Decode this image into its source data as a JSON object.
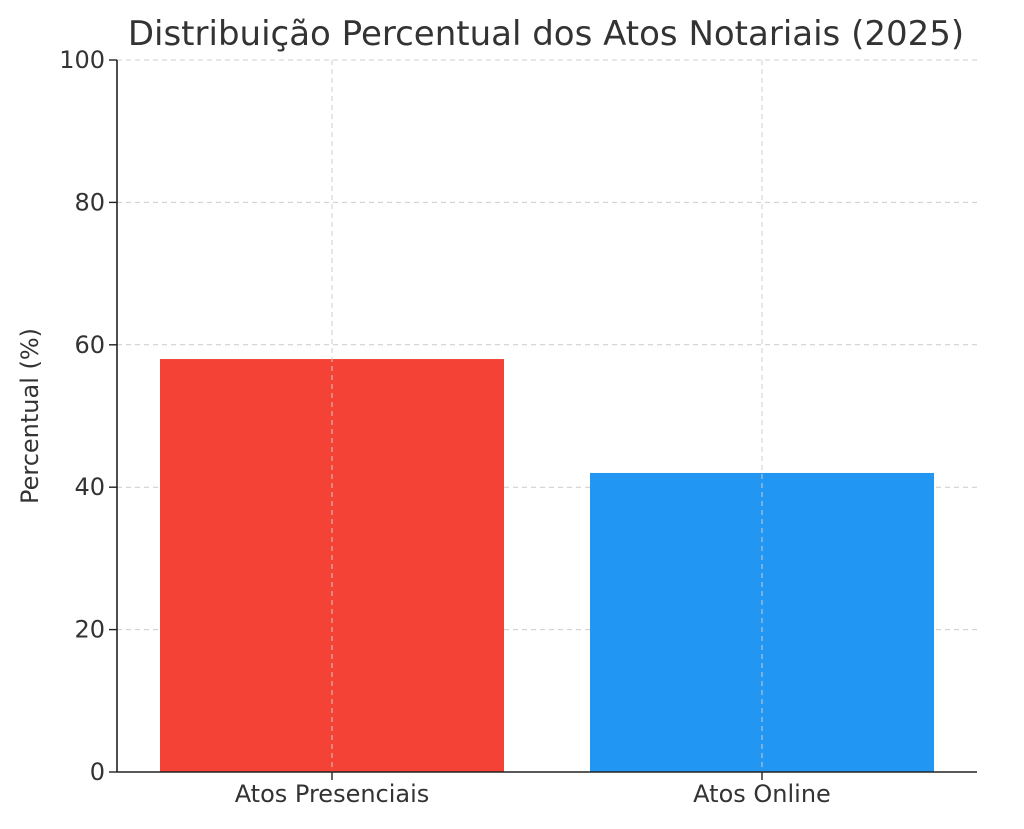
{
  "chart_data": {
    "type": "bar",
    "title": "Distribuição Percentual dos Atos Notariais (2025)",
    "xlabel": "",
    "ylabel": "Percentual (%)",
    "categories": [
      "Atos Presenciais",
      "Atos Online"
    ],
    "values": [
      58,
      42
    ],
    "colors": [
      "#f44336",
      "#2196f3"
    ],
    "ylim": [
      0,
      100
    ],
    "yticks": [
      0,
      20,
      40,
      60,
      80,
      100
    ],
    "grid": true,
    "legend": "none"
  }
}
